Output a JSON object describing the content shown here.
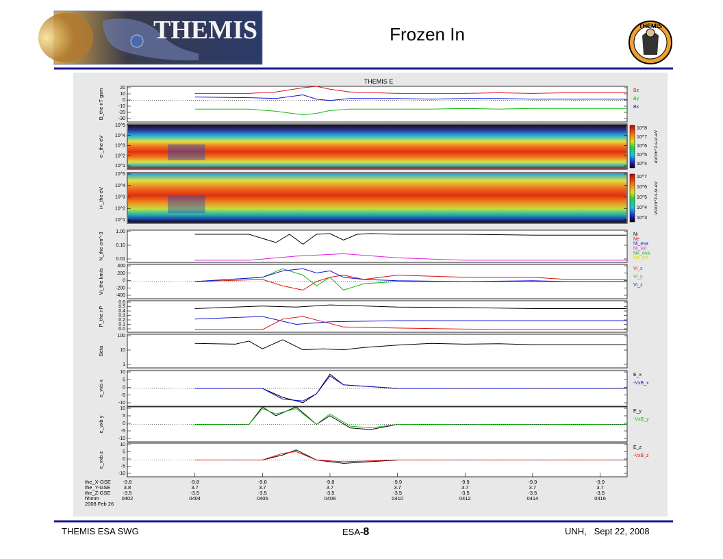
{
  "slide": {
    "title": "Frozen In",
    "logo_left_text": "THEMIS",
    "logo_right_text": "THEMIS",
    "footer_left": "THEMIS ESA SWG",
    "footer_center_prefix": "ESA-",
    "footer_center_number": "8",
    "footer_right": "UNH,   Sept 22, 2008"
  },
  "colors": {
    "rule": "#1a1a8c",
    "black": "#000000",
    "red": "#dd1111",
    "blue": "#1111dd",
    "green": "#11bb11",
    "magenta": "#dd22dd",
    "yellow": "#dddd00",
    "cyan": "#11bbbb"
  },
  "figure": {
    "title": "THEMIS E",
    "x_ticks": [
      "0402",
      "0404",
      "0406",
      "0408",
      "0410",
      "0412",
      "0414",
      "0416"
    ],
    "orbit_rows": [
      {
        "label": "the_X-GSE",
        "values": [
          "-9.8",
          "-9.8",
          "-9.8",
          "-9.8",
          "-9.9",
          "-9.9",
          "-9.9",
          "-9.9"
        ]
      },
      {
        "label": "the_Y-GSE",
        "values": [
          "3.8",
          "3.7",
          "3.7",
          "3.7",
          "3.7",
          "3.7",
          "3.7",
          "3.7"
        ]
      },
      {
        "label": "the_Z-GSE",
        "values": [
          "-3.5",
          "-3.5",
          "-3.5",
          "-3.5",
          "-3.5",
          "-3.5",
          "-3.5",
          "-3.5"
        ]
      }
    ],
    "time_label": "hhmm",
    "date_label": "2008 Feb 26"
  },
  "chart_data": [
    {
      "type": "line",
      "ylabel": "B_the nT gsm",
      "yticks": [
        "20",
        "10",
        "0",
        "-10",
        "-20",
        "-30"
      ],
      "ylim": [
        -30,
        20
      ],
      "legend": [
        {
          "name": "Bz",
          "color": "#dd1111"
        },
        {
          "name": "By",
          "color": "#11bb11"
        },
        {
          "name": "Bx",
          "color": "#1111dd"
        }
      ],
      "series": [
        {
          "name": "Bz",
          "color": "#dd1111",
          "x": [
            2,
            2.8,
            3.2,
            3.6,
            3.8,
            4.0,
            4.3,
            5.0,
            5.5,
            6.0,
            6.5,
            7.0,
            7.5
          ],
          "values": [
            10,
            10,
            12,
            18,
            20,
            16,
            12,
            10,
            10,
            10,
            11,
            10,
            11
          ]
        },
        {
          "name": "By",
          "color": "#11bb11",
          "x": [
            2,
            2.8,
            3.2,
            3.6,
            3.8,
            4.0,
            4.3,
            5.0,
            5.5,
            6.0,
            6.5,
            7.0,
            7.5
          ],
          "values": [
            -12,
            -12,
            -15,
            -20,
            -18,
            -14,
            -12,
            -12,
            -12,
            -11,
            -12,
            -11,
            -11
          ]
        },
        {
          "name": "Bx",
          "color": "#1111dd",
          "x": [
            2,
            2.8,
            3.2,
            3.6,
            3.8,
            4.0,
            4.3,
            5.0,
            5.5,
            6.0,
            6.5,
            7.0,
            7.5
          ],
          "values": [
            5,
            4,
            3,
            8,
            2,
            0,
            3,
            3,
            2,
            3,
            3,
            2,
            2
          ]
        }
      ]
    },
    {
      "type": "heatmap",
      "ylabel": "e-_the eV",
      "yticks": [
        "10^5",
        "10^4",
        "10^3",
        "10^2",
        "10^1"
      ],
      "colorbar": {
        "label": "eV/cm^2-s-sr-eV",
        "ticks": [
          "10^8",
          "10^7",
          "10^6",
          "10^5",
          "10^4"
        ]
      }
    },
    {
      "type": "heatmap",
      "ylabel": "i+_the eV",
      "yticks": [
        "10^5",
        "10^4",
        "10^3",
        "10^2",
        "10^1"
      ],
      "colorbar": {
        "label": "eV/cm^2-s-sr-eV",
        "ticks": [
          "10^7",
          "10^6",
          "10^5",
          "10^4",
          "10^3"
        ]
      }
    },
    {
      "type": "line",
      "ylabel": "N_the cm^-3",
      "yticks": [
        "1.00",
        "0.10",
        "0.01"
      ],
      "log": true,
      "legend": [
        {
          "name": "Ni",
          "color": "#000000"
        },
        {
          "name": "Ne",
          "color": "#dd1111"
        },
        {
          "name": "Ni_esa",
          "color": "#1111dd"
        },
        {
          "name": "Ni_sst",
          "color": "#dd22dd"
        },
        {
          "name": "Ne_esa",
          "color": "#11bb11"
        },
        {
          "name": "Ne_sst",
          "color": "#dddd00"
        }
      ],
      "series": [
        {
          "name": "Ni",
          "color": "#000000",
          "x": [
            2,
            2.8,
            3.2,
            3.4,
            3.6,
            3.8,
            4.0,
            4.2,
            4.4,
            4.6,
            5.0,
            6.0,
            7.0,
            7.5
          ],
          "values": [
            0.8,
            0.8,
            0.2,
            0.8,
            0.15,
            0.8,
            0.9,
            0.3,
            0.8,
            0.9,
            0.8,
            0.8,
            0.7,
            0.7
          ]
        },
        {
          "name": "Ni_sst",
          "color": "#dd22dd",
          "x": [
            2,
            2.8,
            3.5,
            4.2,
            5.0,
            6.0,
            7.0,
            7.5
          ],
          "values": [
            0.01,
            0.01,
            0.02,
            0.03,
            0.015,
            0.01,
            0.01,
            0.01
          ]
        }
      ]
    },
    {
      "type": "line",
      "ylabel": "Vi_the km/s",
      "yticks": [
        "400",
        "200",
        "0",
        "-200",
        "-400"
      ],
      "ylim": [
        -400,
        400
      ],
      "legend": [
        {
          "name": "Vi_x",
          "color": "#dd1111"
        },
        {
          "name": "Vi_y",
          "color": "#11bb11"
        },
        {
          "name": "Vi_z",
          "color": "#1111dd"
        }
      ],
      "series": [
        {
          "name": "Vi_x",
          "color": "#dd1111",
          "x": [
            2,
            3.0,
            3.3,
            3.6,
            3.8,
            4.0,
            4.2,
            4.5,
            5.0,
            6.0,
            7.0,
            7.5
          ],
          "values": [
            0,
            50,
            -100,
            -200,
            0,
            100,
            150,
            50,
            150,
            100,
            100,
            50
          ]
        },
        {
          "name": "Vi_y",
          "color": "#11bb11",
          "x": [
            2,
            3.0,
            3.3,
            3.6,
            3.8,
            4.0,
            4.2,
            4.5,
            5.0,
            6.0,
            7.0,
            7.5
          ],
          "values": [
            0,
            100,
            300,
            150,
            -100,
            100,
            -200,
            -50,
            0,
            0,
            0,
            0
          ]
        },
        {
          "name": "Vi_z",
          "color": "#1111dd",
          "x": [
            2,
            3.0,
            3.3,
            3.6,
            3.8,
            4.0,
            4.2,
            4.5,
            5.0,
            6.0,
            7.0,
            7.5
          ],
          "values": [
            0,
            100,
            250,
            300,
            200,
            250,
            100,
            50,
            20,
            0,
            20,
            0
          ]
        }
      ]
    },
    {
      "type": "line",
      "ylabel": "P_the nP",
      "yticks": [
        "0.6",
        "0.5",
        "0.4",
        "0.3",
        "0.2",
        "0.1",
        "0.0"
      ],
      "ylim": [
        0,
        0.6
      ],
      "series": [
        {
          "name": "black",
          "color": "#000000",
          "x": [
            2,
            3,
            3.5,
            4,
            5,
            6,
            7,
            7.5
          ],
          "values": [
            0.45,
            0.5,
            0.48,
            0.52,
            0.48,
            0.47,
            0.45,
            0.45
          ]
        },
        {
          "name": "blue",
          "color": "#1111dd",
          "x": [
            2,
            3,
            3.5,
            4,
            5,
            6,
            7,
            7.5
          ],
          "values": [
            0.25,
            0.3,
            0.15,
            0.2,
            0.22,
            0.22,
            0.22,
            0.22
          ]
        },
        {
          "name": "red",
          "color": "#dd1111",
          "x": [
            2,
            3,
            3.3,
            3.6,
            3.9,
            4.2,
            5,
            6,
            7,
            7.5
          ],
          "values": [
            0.05,
            0.05,
            0.25,
            0.3,
            0.2,
            0.1,
            0.08,
            0.06,
            0.05,
            0.05
          ]
        }
      ]
    },
    {
      "type": "line",
      "ylabel": "Beta",
      "yticks": [
        "100",
        "10",
        "1"
      ],
      "log": true,
      "series": [
        {
          "name": "Beta",
          "color": "#000000",
          "x": [
            2,
            2.6,
            2.8,
            3.0,
            3.3,
            3.6,
            3.9,
            4.2,
            4.5,
            5.0,
            5.5,
            6.0,
            6.5,
            7.0,
            7.5
          ],
          "values": [
            10,
            8,
            20,
            2,
            30,
            1.5,
            2,
            1.5,
            3,
            6,
            10,
            8,
            9,
            7,
            7
          ]
        }
      ]
    },
    {
      "type": "line",
      "ylabel": "e_vxb x",
      "yticks": [
        "10",
        "5",
        "0",
        "-5",
        "-10"
      ],
      "ylim": [
        -10,
        10
      ],
      "legend": [
        {
          "name": "E_x",
          "color": "#000000"
        },
        {
          "name": "-VxB_x",
          "color": "#1111dd"
        }
      ],
      "series": [
        {
          "name": "E_x",
          "color": "#000000",
          "x": [
            2,
            3.0,
            3.3,
            3.6,
            3.8,
            4.0,
            4.2,
            5.0,
            6.0,
            7.0,
            7.5
          ],
          "values": [
            0,
            0,
            -5,
            -8,
            -3,
            8,
            2,
            0,
            0,
            0,
            0
          ]
        },
        {
          "name": "-VxB_x",
          "color": "#1111dd",
          "x": [
            2,
            3.0,
            3.3,
            3.6,
            3.8,
            4.0,
            4.2,
            5.0,
            6.0,
            7.0,
            7.5
          ],
          "values": [
            0,
            0,
            -6,
            -7,
            -3,
            7,
            2,
            0,
            0,
            0,
            0
          ]
        }
      ]
    },
    {
      "type": "line",
      "ylabel": "e_vxb y",
      "yticks": [
        "10",
        "5",
        "0",
        "-5",
        "-10"
      ],
      "ylim": [
        -10,
        10
      ],
      "legend": [
        {
          "name": "E_y",
          "color": "#000000"
        },
        {
          "name": "-VxB_y",
          "color": "#11bb11"
        }
      ],
      "series": [
        {
          "name": "E_y",
          "color": "#000000",
          "x": [
            2,
            2.8,
            3.0,
            3.2,
            3.5,
            3.8,
            4.0,
            4.3,
            4.6,
            5.0,
            6.0,
            7.0,
            7.5
          ],
          "values": [
            0,
            0,
            10,
            5,
            10,
            0,
            5,
            -2,
            -3,
            0,
            0,
            0,
            0
          ]
        },
        {
          "name": "-VxB_y",
          "color": "#11bb11",
          "x": [
            2,
            2.8,
            3.0,
            3.2,
            3.5,
            3.8,
            4.0,
            4.3,
            4.6,
            5.0,
            6.0,
            7.0,
            7.5
          ],
          "values": [
            0,
            0,
            9,
            6,
            9,
            0,
            6,
            -1,
            -2,
            0,
            0,
            0,
            0
          ]
        }
      ]
    },
    {
      "type": "line",
      "ylabel": "e_vxb z",
      "yticks": [
        "10",
        "5",
        "0",
        "-5",
        "-10"
      ],
      "ylim": [
        -10,
        10
      ],
      "legend": [
        {
          "name": "E_z",
          "color": "#000000"
        },
        {
          "name": "-VxB_z",
          "color": "#dd1111"
        }
      ],
      "series": [
        {
          "name": "E_z",
          "color": "#000000",
          "x": [
            2,
            3.0,
            3.3,
            3.5,
            3.8,
            4.2,
            5.0,
            6.0,
            7.0,
            7.5
          ],
          "values": [
            0,
            0,
            3,
            6,
            0,
            -2,
            0,
            0,
            0,
            0
          ]
        },
        {
          "name": "-VxB_z",
          "color": "#dd1111",
          "x": [
            2,
            3.0,
            3.3,
            3.5,
            3.8,
            4.2,
            5.0,
            6.0,
            7.0,
            7.5
          ],
          "values": [
            0,
            0,
            4,
            5,
            0,
            -1,
            0,
            0,
            0,
            0
          ]
        }
      ]
    }
  ]
}
